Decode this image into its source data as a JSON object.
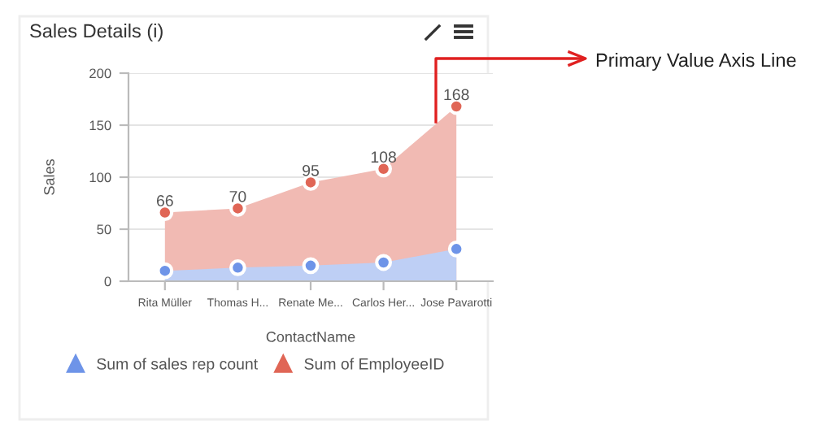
{
  "chart_data": {
    "type": "area",
    "title": "Sales Details (i)",
    "xlabel": "ContactName",
    "ylabel": "Sales",
    "categories": [
      "Rita Müller",
      "Thomas H...",
      "Renate Me...",
      "Carlos Her...",
      "Jose Pavarotti"
    ],
    "series": [
      {
        "name": "Sum of EmployeeID",
        "color": "#e06656",
        "values": [
          66,
          70,
          95,
          108,
          168
        ],
        "value_labels": [
          "66",
          "70",
          "95",
          "108",
          "168"
        ]
      },
      {
        "name": "Sum of sales rep count",
        "color": "#6e94e8",
        "values": [
          10,
          13,
          15,
          18,
          31
        ]
      }
    ],
    "ylim": [
      0,
      200
    ],
    "yticks": [
      0,
      50,
      100,
      150,
      200
    ],
    "grid": "y",
    "legend": "bottom",
    "marker": "circle",
    "annotations": [
      "Primary Value Axis Line"
    ]
  }
}
